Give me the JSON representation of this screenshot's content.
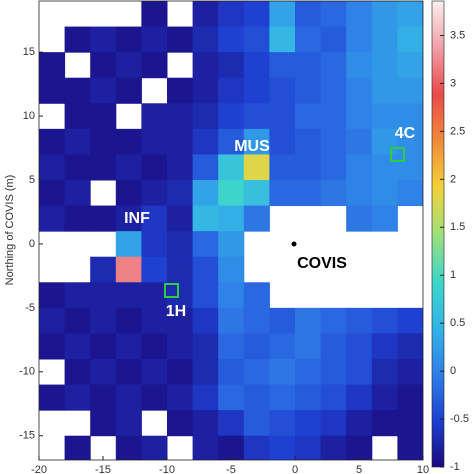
{
  "chart_data": {
    "type": "heatmap",
    "ylabel": "Northing of COVIS (m)",
    "x": [
      -19,
      -17,
      -15,
      -13,
      -11,
      -9,
      -7,
      -5,
      -3,
      -1,
      1,
      3,
      5,
      7,
      9
    ],
    "y": [
      18,
      16,
      14,
      12,
      10,
      8,
      6,
      4,
      2,
      0,
      -2,
      -4,
      -6,
      -8,
      -10,
      -12,
      -14,
      -16
    ],
    "values": [
      [
        null,
        null,
        null,
        null,
        -0.9,
        null,
        -0.8,
        -0.6,
        -0.5,
        0.3,
        -0.3,
        -0.2,
        0,
        0.2,
        0.3
      ],
      [
        null,
        -0.9,
        -0.8,
        -0.9,
        -0.8,
        -0.9,
        -0.7,
        -0.5,
        -0.4,
        0.5,
        -0.2,
        -0.3,
        0,
        0.2,
        0.4
      ],
      [
        -0.9,
        null,
        -0.9,
        -0.8,
        -0.9,
        null,
        -0.8,
        -0.7,
        -0.5,
        -0.3,
        -0.3,
        -0.2,
        0.1,
        0.2,
        0.3
      ],
      [
        -0.9,
        -0.9,
        -0.8,
        -0.9,
        null,
        -0.9,
        -0.8,
        -0.6,
        -0.5,
        -0.4,
        -0.3,
        -0.2,
        0,
        0.2,
        0.2
      ],
      [
        null,
        -0.9,
        -0.9,
        null,
        -0.8,
        -0.8,
        -0.7,
        -0.5,
        -0.4,
        -0.4,
        -0.2,
        -0.2,
        0,
        0.1,
        0.1
      ],
      [
        -0.9,
        -0.8,
        -0.9,
        -0.9,
        -0.8,
        -0.8,
        -0.6,
        -0.3,
        0.2,
        -0.4,
        -0.3,
        -0.2,
        -0.1,
        0.2,
        0.1
      ],
      [
        -0.8,
        -0.9,
        -0.9,
        -0.8,
        -0.9,
        -0.8,
        -0.3,
        0.7,
        1.8,
        -0.3,
        -0.3,
        -0.2,
        0,
        0.1,
        0.1
      ],
      [
        -0.9,
        -0.8,
        null,
        -0.9,
        -0.8,
        -0.7,
        0.3,
        0.9,
        0.6,
        -0.2,
        -0.2,
        -0.1,
        0,
        0.1,
        0
      ],
      [
        -0.8,
        -0.9,
        -0.9,
        -0.8,
        -0.6,
        -0.8,
        0.5,
        0.4,
        -0.1,
        null,
        null,
        null,
        -0.1,
        0,
        null
      ],
      [
        null,
        null,
        null,
        0.3,
        -0.6,
        -0.7,
        -0.2,
        0.2,
        null,
        null,
        null,
        null,
        null,
        null,
        null
      ],
      [
        null,
        null,
        -0.7,
        3.2,
        -0.5,
        -0.7,
        -0.4,
        0.1,
        null,
        null,
        null,
        null,
        null,
        null,
        null
      ],
      [
        -0.9,
        -0.8,
        -0.8,
        -0.8,
        -0.8,
        -0.7,
        -0.4,
        0,
        -0.2,
        null,
        null,
        null,
        null,
        null,
        null
      ],
      [
        -0.8,
        -0.9,
        -0.8,
        -0.9,
        -0.8,
        -0.8,
        -0.6,
        -0.1,
        -0.2,
        -0.3,
        -0.1,
        -0.2,
        -0.3,
        -0.4,
        -0.5
      ],
      [
        -0.9,
        -0.8,
        -0.9,
        -0.8,
        -0.9,
        -0.8,
        -0.7,
        -0.2,
        -0.3,
        -0.2,
        -0.1,
        -0.3,
        -0.4,
        -0.6,
        -0.7
      ],
      [
        null,
        -0.9,
        -0.8,
        -0.9,
        -0.8,
        -0.9,
        -0.7,
        -0.3,
        -0.2,
        -0.1,
        -0.2,
        -0.3,
        -0.4,
        -0.7,
        -0.8
      ],
      [
        -0.9,
        -0.8,
        -0.9,
        -0.8,
        -0.9,
        -0.8,
        -0.6,
        -0.2,
        -0.3,
        -0.2,
        -0.3,
        -0.4,
        -0.6,
        -0.8,
        -0.9
      ],
      [
        null,
        null,
        -0.9,
        -0.8,
        null,
        -0.9,
        -0.8,
        -0.6,
        -0.3,
        -0.4,
        -0.5,
        -0.6,
        -0.8,
        -0.9,
        -0.9
      ],
      [
        null,
        -0.9,
        null,
        -0.9,
        -0.8,
        null,
        -0.8,
        -0.9,
        -0.6,
        -0.5,
        -0.6,
        -0.8,
        -0.9,
        null,
        -0.9
      ]
    ],
    "xlim": [
      -20,
      10
    ],
    "xticks": [
      -20,
      -15,
      -10,
      -5,
      0,
      5,
      10
    ],
    "ylim": [
      -16.9,
      19
    ],
    "yticks": [
      -15,
      -10,
      -5,
      0,
      5,
      10,
      15
    ],
    "clim": [
      -1,
      3.86
    ],
    "cticks": [
      -1,
      -0.5,
      0,
      0.5,
      1,
      1.5,
      2,
      2.5,
      3,
      3.5
    ],
    "colormap": [
      "#1a0a80",
      "#1f3fd0",
      "#2f7fe8",
      "#33b5e6",
      "#3fd6c8",
      "#9ee07a",
      "#f2d13a",
      "#f08a3a",
      "#e84a4a",
      "#f0a0a8",
      "#fbeef0"
    ],
    "annotations": [
      "INF",
      "MUS",
      "4C",
      "1H",
      "COVIS"
    ]
  }
}
